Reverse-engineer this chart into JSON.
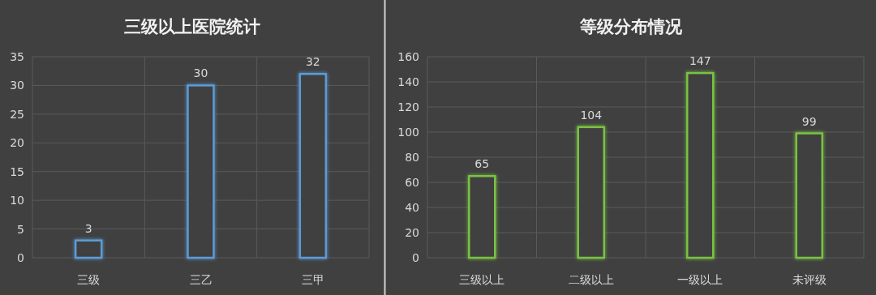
{
  "chart_data": [
    {
      "type": "bar",
      "title": "三级以上医院统计",
      "categories": [
        "三级",
        "三乙",
        "三甲"
      ],
      "values": [
        3,
        30,
        32
      ],
      "color": "#5b9bd5",
      "ylim": [
        0,
        35
      ],
      "yticks": [
        0,
        5,
        10,
        15,
        20,
        25,
        30,
        35
      ],
      "grid": true,
      "data_labels": true
    },
    {
      "type": "bar",
      "title": "等级分布情况",
      "categories": [
        "三级以上",
        "二级以上",
        "一级以上",
        "未评级"
      ],
      "values": [
        65,
        104,
        147,
        99
      ],
      "color": "#7ac143",
      "ylim": [
        0,
        160
      ],
      "yticks": [
        0,
        20,
        40,
        60,
        80,
        100,
        120,
        140,
        160
      ],
      "grid": true,
      "data_labels": true
    }
  ]
}
